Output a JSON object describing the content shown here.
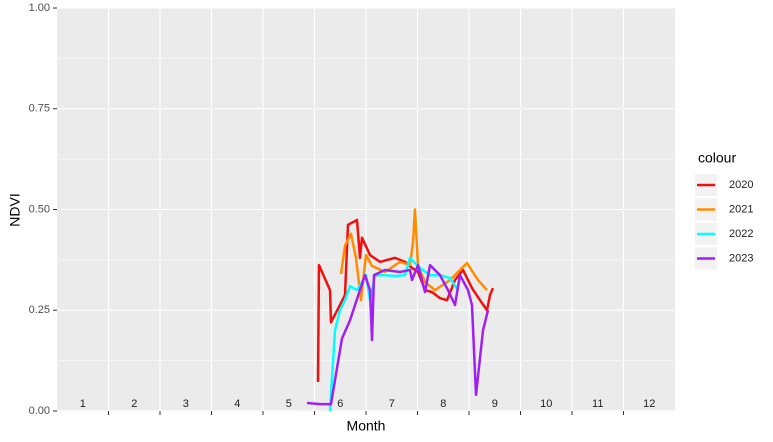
{
  "chart_data": {
    "type": "line",
    "x_label": "Month",
    "y_label": "NDVI",
    "legend_title": "colour",
    "xlim": [
      0.5,
      12.5
    ],
    "xticks": [
      1,
      2,
      3,
      4,
      5,
      6,
      7,
      8,
      9,
      10,
      11,
      12
    ],
    "ylim": [
      0,
      1
    ],
    "yticks": [
      {
        "value": 0,
        "label": "0.00"
      },
      {
        "value": 0.25,
        "label": "0.25"
      },
      {
        "value": 0.5,
        "label": "0.50"
      },
      {
        "value": 0.75,
        "label": "0.75"
      },
      {
        "value": 1,
        "label": "1.00"
      }
    ],
    "grid": true,
    "series": [
      {
        "name": "2020",
        "color": "#f01010",
        "x": [
          5.568,
          5.587,
          5.801,
          5.82,
          5.995,
          6.092,
          6.15,
          6.325,
          6.383,
          6.422,
          6.578,
          6.772,
          7.063,
          7.257,
          7.393,
          7.51,
          7.646,
          7.782,
          7.937,
          8.073,
          8.228,
          8.383,
          8.558,
          8.714,
          8.85,
          8.908,
          8.966
        ],
        "values": [
          0.072,
          0.362,
          0.3,
          0.22,
          0.263,
          0.288,
          0.462,
          0.474,
          0.38,
          0.43,
          0.387,
          0.37,
          0.38,
          0.37,
          0.355,
          0.345,
          0.3,
          0.295,
          0.28,
          0.275,
          0.325,
          0.35,
          0.305,
          0.275,
          0.25,
          0.288,
          0.305
        ]
      },
      {
        "name": "2021",
        "color": "#ff8c00",
        "x": [
          6.015,
          6.092,
          6.208,
          6.305,
          6.403,
          6.5,
          6.617,
          6.869,
          7.16,
          7.354,
          7.413,
          7.451,
          7.51,
          7.646,
          7.84,
          8.131,
          8.461,
          8.675,
          8.85
        ],
        "values": [
          0.34,
          0.41,
          0.44,
          0.38,
          0.275,
          0.387,
          0.36,
          0.345,
          0.37,
          0.362,
          0.42,
          0.5,
          0.36,
          0.32,
          0.3,
          0.325,
          0.367,
          0.325,
          0.3
        ]
      },
      {
        "name": "2022",
        "color": "#00ffff",
        "x": [
          5.801,
          5.898,
          5.995,
          6.092,
          6.189,
          6.325,
          6.422,
          6.5,
          6.578,
          6.675,
          6.869,
          7.063,
          7.257,
          7.354,
          7.548,
          7.743,
          7.937,
          8.131,
          8.286
        ],
        "values": [
          0.0,
          0.2,
          0.25,
          0.275,
          0.31,
          0.3,
          0.32,
          0.337,
          0.275,
          0.337,
          0.337,
          0.335,
          0.337,
          0.38,
          0.355,
          0.337,
          0.337,
          0.33,
          0.3
        ]
      },
      {
        "name": "2023",
        "color": "#a020f0",
        "x": [
          5.354,
          5.607,
          5.82,
          6.034,
          6.189,
          6.383,
          6.48,
          6.578,
          6.617,
          6.655,
          6.869,
          7.16,
          7.354,
          7.393,
          7.51,
          7.646,
          7.743,
          7.937,
          8.092,
          8.228,
          8.325,
          8.481,
          8.558,
          8.636,
          8.772,
          8.869
        ],
        "values": [
          0.02,
          0.017,
          0.017,
          0.18,
          0.225,
          0.3,
          0.337,
          0.3,
          0.176,
          0.337,
          0.35,
          0.345,
          0.35,
          0.325,
          0.362,
          0.295,
          0.362,
          0.337,
          0.3,
          0.263,
          0.337,
          0.3,
          0.263,
          0.04,
          0.2,
          0.25
        ]
      }
    ]
  }
}
